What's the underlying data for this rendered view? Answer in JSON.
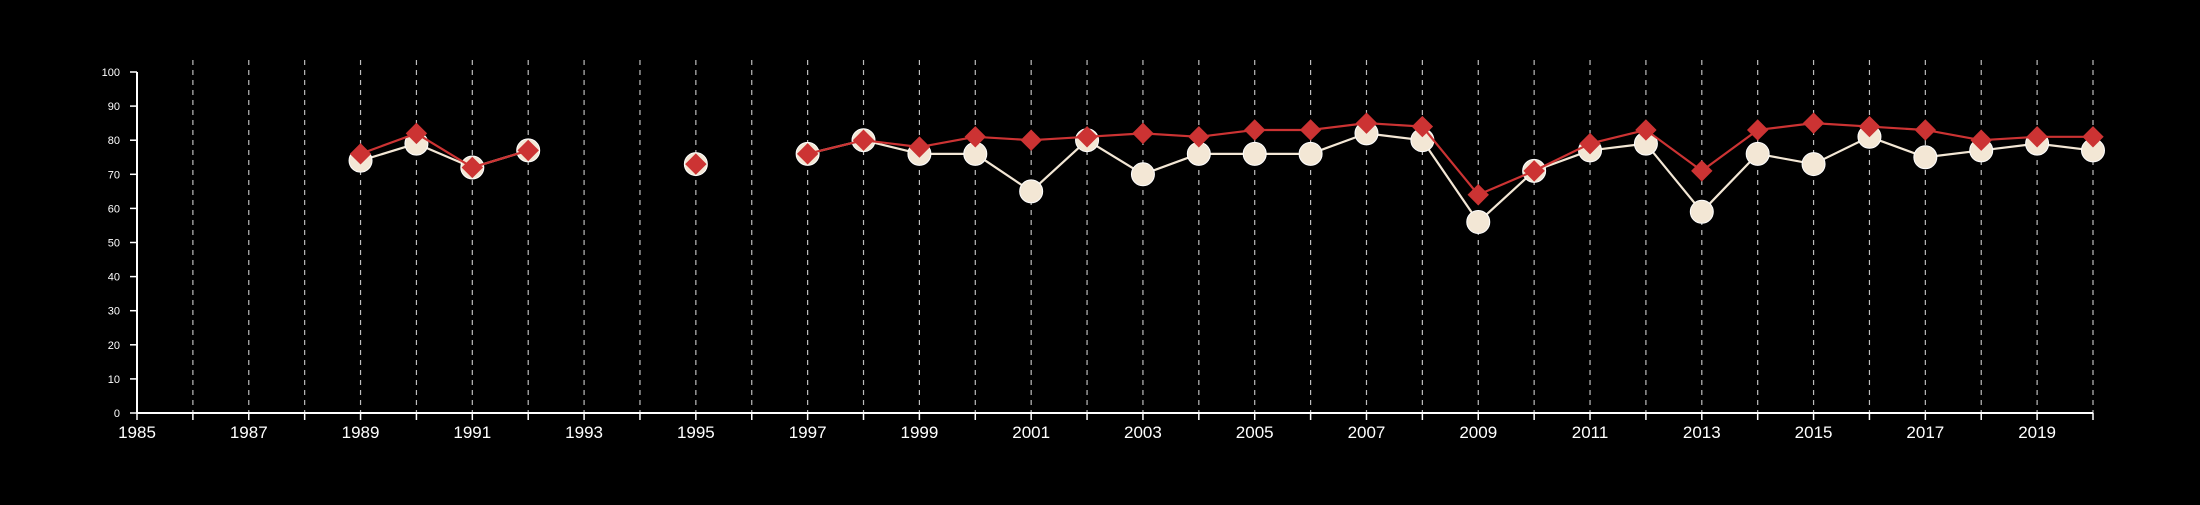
{
  "chart_data": {
    "type": "line",
    "title": "",
    "xlabel": "",
    "ylabel": "",
    "xlim": [
      1985,
      2020
    ],
    "ylim": [
      0,
      100
    ],
    "x_tick_labels": [
      "1985",
      "1987",
      "1989",
      "1991",
      "1993",
      "1995",
      "1997",
      "1999",
      "2001",
      "2003",
      "2005",
      "2007",
      "2009",
      "2011",
      "2013",
      "2015",
      "2017",
      "2019"
    ],
    "y_tick_labels": [
      "0",
      "10",
      "20",
      "30",
      "40",
      "50",
      "60",
      "70",
      "80",
      "90",
      "100"
    ],
    "vertical_grid": "dashed at every year",
    "legend": "none",
    "x": [
      1985,
      1986,
      1987,
      1988,
      1989,
      1990,
      1991,
      1992,
      1993,
      1994,
      1995,
      1996,
      1997,
      1998,
      1999,
      2000,
      2001,
      2002,
      2003,
      2004,
      2005,
      2006,
      2007,
      2008,
      2009,
      2010,
      2011,
      2012,
      2013,
      2014,
      2015,
      2016,
      2017,
      2018,
      2019,
      2020
    ],
    "series": [
      {
        "marker": "circle",
        "color": "#f3e7d5",
        "values": [
          null,
          null,
          null,
          null,
          74,
          79,
          72,
          77,
          null,
          null,
          73,
          null,
          76,
          80,
          76,
          76,
          65,
          80,
          70,
          76,
          76,
          76,
          82,
          80,
          56,
          71,
          77,
          79,
          59,
          76,
          73,
          81,
          75,
          77,
          79,
          77
        ]
      },
      {
        "marker": "diamond",
        "color": "#cc3333",
        "values": [
          null,
          null,
          null,
          null,
          76,
          82,
          72,
          77,
          null,
          null,
          73,
          null,
          76,
          80,
          78,
          81,
          80,
          81,
          82,
          81,
          83,
          83,
          85,
          84,
          64,
          71,
          79,
          83,
          71,
          83,
          85,
          84,
          83,
          80,
          81,
          81
        ]
      }
    ]
  }
}
